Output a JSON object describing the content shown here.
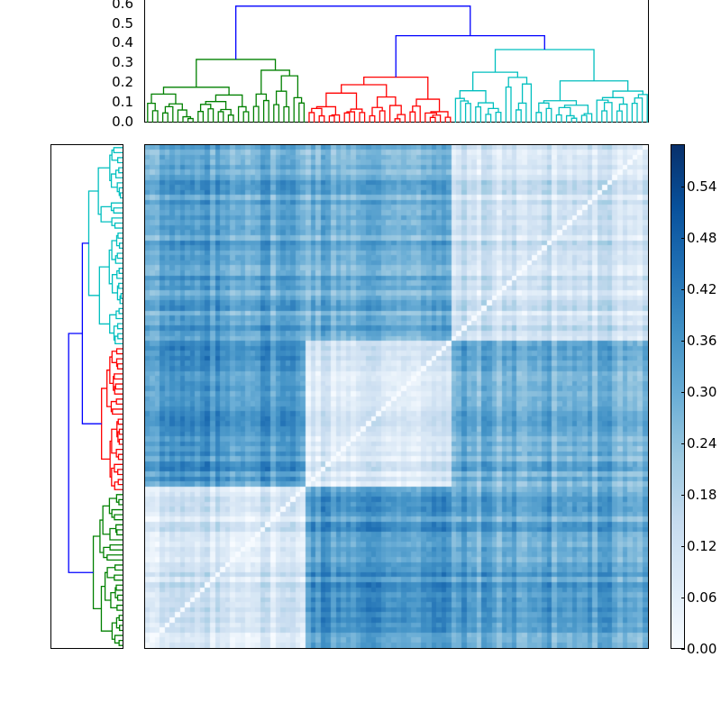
{
  "chart_data": {
    "type": "heatmap",
    "title": "",
    "description": "Clustered distance heatmap with row (left) and column (top) dendrograms and a Blues colorbar",
    "top_dendrogram": {
      "ylabel": "",
      "yticks": [
        "0.0",
        "0.1",
        "0.2",
        "0.3",
        "0.4",
        "0.5",
        "0.6"
      ],
      "ylim": [
        0,
        0.61
      ],
      "root_height": 0.59,
      "clusters": [
        {
          "color": "#008000",
          "name": "green",
          "merge_height": 0.32,
          "span": [
            0,
            0.315
          ]
        },
        {
          "color": "#ff0000",
          "name": "red",
          "merge_height": 0.23,
          "span": [
            0.315,
            0.607
          ]
        },
        {
          "color": "#00bfbf",
          "name": "cyan",
          "merge_height": 0.37,
          "span": [
            0.607,
            1.0
          ]
        }
      ],
      "link_color": "#0000ff",
      "upper_links": [
        {
          "left": "green",
          "right": "red+cyan",
          "height": 0.59
        },
        {
          "left": "red",
          "right": "cyan",
          "height": 0.44
        }
      ]
    },
    "left_dendrogram": {
      "clusters_top_to_bottom": [
        {
          "color": "#00bfbf",
          "name": "cyan",
          "span": [
            0,
            0.398
          ]
        },
        {
          "color": "#ff0000",
          "name": "red",
          "span": [
            0.398,
            0.688
          ]
        },
        {
          "color": "#008000",
          "name": "green",
          "span": [
            0.688,
            1.0
          ]
        }
      ],
      "link_color": "#0000ff"
    },
    "heatmap": {
      "colormap": "Blues",
      "n": 100,
      "column_blocks": [
        "green",
        "red",
        "cyan"
      ],
      "row_blocks_top_to_bottom": [
        "cyan",
        "red",
        "green"
      ],
      "diagonal_value": 0.0,
      "block_means": {
        "green-green": 0.1,
        "green-red": 0.36,
        "green-cyan": 0.32,
        "red-red": 0.1,
        "red-cyan": 0.3,
        "cyan-cyan": 0.12
      }
    },
    "colorbar": {
      "ticks": [
        "0.00",
        "0.06",
        "0.12",
        "0.18",
        "0.24",
        "0.30",
        "0.36",
        "0.42",
        "0.48",
        "0.54"
      ],
      "vmin": 0.0,
      "vmax": 0.59,
      "colors": [
        "#f7fbff",
        "#deebf7",
        "#c6dbef",
        "#9ecae1",
        "#6baed6",
        "#4292c6",
        "#2171b5",
        "#08519c",
        "#08306b"
      ]
    }
  }
}
